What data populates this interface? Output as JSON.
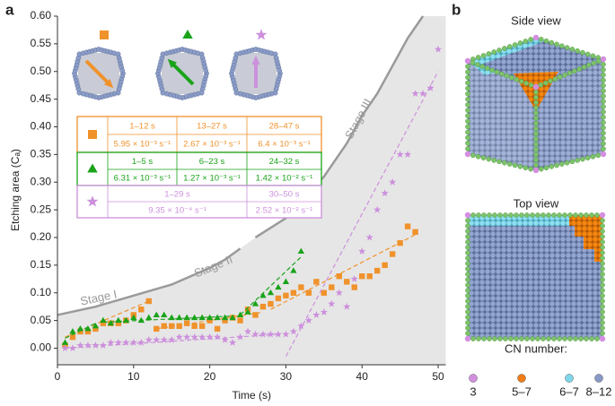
{
  "chart_data": {
    "type": "scatter",
    "panel_label": "a",
    "x_label": "Time (s)",
    "y_label": "Etching area (Cₐ)",
    "xlim": [
      0,
      51
    ],
    "ylim": [
      -0.03,
      0.6
    ],
    "xticks": [
      0,
      10,
      20,
      30,
      40,
      50
    ],
    "yticks": [
      {
        "value": 0,
        "label": "0.00"
      },
      {
        "value": 0.05,
        "label": "0.05"
      },
      {
        "value": 0.1,
        "label": "0.10"
      },
      {
        "value": 0.15,
        "label": "0.15"
      },
      {
        "value": 0.2,
        "label": "0.20"
      },
      {
        "value": 0.25,
        "label": "0.25"
      },
      {
        "value": 0.3,
        "label": "0.30"
      },
      {
        "value": 0.35,
        "label": "0.35"
      },
      {
        "value": 0.4,
        "label": "0.40"
      },
      {
        "value": 0.45,
        "label": "0.45"
      },
      {
        "value": 0.5,
        "label": "0.50"
      },
      {
        "value": 0.55,
        "label": "0.55"
      },
      {
        "value": 0.6,
        "label": "0.60"
      }
    ],
    "series": [
      {
        "marker": "square",
        "color": "#f0922c",
        "x": [
          1,
          2,
          3,
          4,
          5,
          6,
          7,
          8,
          9,
          10,
          11,
          12,
          13,
          14,
          15,
          16,
          17,
          18,
          19,
          20,
          21,
          22,
          23,
          24,
          25,
          26,
          27,
          28,
          29,
          30,
          31,
          32,
          33,
          34,
          35,
          36,
          37,
          38,
          39,
          40,
          41,
          42,
          43,
          44,
          45,
          46,
          47
        ],
        "values": [
          0.005,
          0.02,
          0.03,
          0.03,
          0.035,
          0.045,
          0.045,
          0.045,
          0.05,
          0.06,
          0.07,
          0.085,
          0.035,
          0.04,
          0.04,
          0.04,
          0.045,
          0.04,
          0.04,
          0.05,
          0.035,
          0.05,
          0.055,
          0.05,
          0.07,
          0.06,
          0.075,
          0.08,
          0.09,
          0.095,
          0.1,
          0.11,
          0.1,
          0.12,
          0.1,
          0.11,
          0.13,
          0.12,
          0.11,
          0.13,
          0.13,
          0.14,
          0.15,
          0.17,
          0.19,
          0.22,
          0.21
        ],
        "fits": [
          {
            "x": [
              1,
              12
            ],
            "values": [
              0.02,
              0.085
            ]
          },
          {
            "x": [
              13,
              27
            ],
            "values": [
              0.035,
              0.065
            ]
          },
          {
            "x": [
              28,
              47
            ],
            "values": [
              0.07,
              0.205
            ]
          }
        ]
      },
      {
        "marker": "triangle",
        "color": "#1aa31a",
        "x": [
          1,
          2,
          3,
          4,
          5,
          6,
          7,
          8,
          9,
          10,
          11,
          12,
          13,
          14,
          15,
          16,
          17,
          18,
          19,
          20,
          21,
          22,
          23,
          24,
          25,
          26,
          27,
          28,
          29,
          30,
          31,
          32
        ],
        "values": [
          0.01,
          0.03,
          0.035,
          0.035,
          0.04,
          0.05,
          0.045,
          0.05,
          0.05,
          0.055,
          0.05,
          0.055,
          0.06,
          0.06,
          0.055,
          0.055,
          0.055,
          0.055,
          0.055,
          0.055,
          0.055,
          0.055,
          0.055,
          0.06,
          0.065,
          0.08,
          0.095,
          0.1,
          0.11,
          0.12,
          0.14,
          0.175
        ],
        "fits": [
          {
            "x": [
              1,
              5
            ],
            "values": [
              0.018,
              0.045
            ]
          },
          {
            "x": [
              6,
              23
            ],
            "values": [
              0.047,
              0.058
            ]
          },
          {
            "x": [
              24,
              32
            ],
            "values": [
              0.06,
              0.165
            ]
          }
        ]
      },
      {
        "marker": "star",
        "color": "#cc90dc",
        "x": [
          1,
          2,
          3,
          4,
          5,
          6,
          7,
          8,
          9,
          10,
          11,
          12,
          13,
          14,
          15,
          16,
          17,
          18,
          19,
          20,
          21,
          22,
          23,
          24,
          25,
          26,
          27,
          28,
          29,
          30,
          31,
          32,
          33,
          34,
          35,
          36,
          37,
          38,
          39,
          40,
          41,
          42,
          43,
          44,
          45,
          46,
          47,
          48,
          49,
          50
        ],
        "values": [
          0,
          0,
          0.005,
          0.005,
          0.005,
          0.005,
          0.01,
          0.01,
          0.01,
          0.01,
          0.01,
          0.015,
          0.015,
          0.015,
          0.015,
          0.02,
          0.02,
          0.02,
          0.02,
          0.02,
          0.02,
          0.015,
          0.01,
          0.02,
          0.03,
          0.025,
          0.025,
          0.025,
          0.025,
          0.025,
          0.03,
          0.04,
          0.05,
          0.06,
          0.065,
          0.08,
          0.1,
          0.075,
          0.125,
          0.175,
          0.2,
          0.25,
          0.28,
          0.3,
          0.35,
          0.35,
          0.46,
          0.46,
          0.47,
          0.54
        ],
        "fits": [
          {
            "x": [
              1,
              29
            ],
            "values": [
              0,
              0.025
            ]
          },
          {
            "x": [
              30,
              50
            ],
            "values": [
              -0.015,
              0.5
            ]
          }
        ]
      }
    ],
    "boundary": {
      "color": "#9a9a9a",
      "x": [
        0,
        5,
        10,
        15,
        20,
        22,
        24,
        25,
        26,
        30,
        35,
        38,
        40,
        42,
        44,
        46,
        48
      ],
      "values": [
        0.06,
        0.075,
        0.095,
        0.115,
        0.145,
        0.16,
        0.18,
        null,
        0.2,
        0.235,
        0.31,
        0.37,
        0.42,
        0.46,
        0.51,
        0.56,
        0.6
      ]
    },
    "annotations": [
      "Stage I",
      "Stage II",
      "Stage III"
    ],
    "inset_table": [
      {
        "color": "#f0922c",
        "times": [
          "1–12 s",
          "13–27 s",
          "28–47 s"
        ],
        "rates": [
          "5.95 × 10⁻³ s⁻¹",
          "2.67 × 10⁻³ s⁻¹",
          "6.4 × 10⁻³ s⁻¹"
        ]
      },
      {
        "color": "#1aa31a",
        "times": [
          "1–5 s",
          "6–23 s",
          "24–32 s"
        ],
        "rates": [
          "6.31 × 10⁻³ s⁻¹",
          "1.27 × 10⁻³ s⁻¹",
          "1.42 × 10⁻² s⁻¹"
        ]
      },
      {
        "color": "#cc90dc",
        "times": [
          "1–29 s",
          "30–50 s"
        ],
        "rates": [
          "9.35 × 10⁻⁴ s⁻¹",
          "2.52 × 10⁻² s⁻¹"
        ]
      }
    ]
  },
  "panel_b": {
    "panel_label": "b",
    "views": [
      "Side view",
      "Top view"
    ],
    "legend_title": "CN number:",
    "legend": [
      {
        "label": "3",
        "color": "#d48ee0"
      },
      {
        "label": "5–7",
        "color": "#f07d14"
      },
      {
        "label": "6–7",
        "color": "#7fd8ea"
      },
      {
        "label": "8–12",
        "color": "#8799c6"
      }
    ]
  }
}
